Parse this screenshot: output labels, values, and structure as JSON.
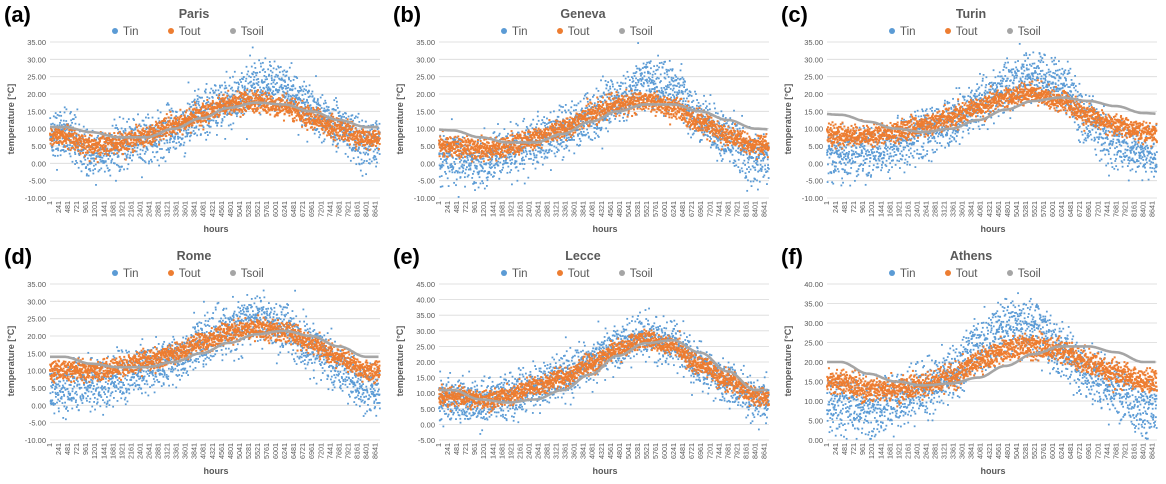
{
  "colors": {
    "Tin": "#5b9bd5",
    "Tout": "#ed7d31",
    "Tsoil": "#a5a5a5",
    "grid": "#d9d9d9",
    "text": "#595959"
  },
  "chart_data": [
    {
      "panel": "(a)",
      "title": "Paris",
      "type": "scatter",
      "xlabel": "hours",
      "ylabel": "temperature [°C]",
      "ylim": [
        -10,
        35
      ],
      "yticks": [
        "-10.00",
        "-5.00",
        "0.00",
        "5.00",
        "10.00",
        "15.00",
        "20.00",
        "25.00",
        "30.00",
        "35.00"
      ],
      "grid": true,
      "legend": "top",
      "series": [
        {
          "name": "Tin",
          "values": [
            9,
            2,
            5,
            7,
            9,
            14,
            18,
            22,
            22,
            16,
            10,
            5
          ]
        },
        {
          "name": "Tout",
          "values": [
            8,
            5,
            6,
            8,
            11,
            14,
            17,
            18,
            16,
            13,
            10,
            7
          ]
        },
        {
          "name": "Tsoil",
          "values": [
            10.5,
            9,
            7.5,
            7.5,
            10,
            13,
            16,
            17.5,
            17,
            15,
            12.5,
            10.5
          ]
        }
      ]
    },
    {
      "panel": "(b)",
      "title": "Geneva",
      "type": "scatter",
      "xlabel": "hours",
      "ylabel": "temperature [°C]",
      "ylim": [
        -10,
        35
      ],
      "yticks": [
        "-10.00",
        "-5.00",
        "0.00",
        "5.00",
        "10.00",
        "15.00",
        "20.00",
        "25.00",
        "30.00",
        "35.00"
      ],
      "grid": true,
      "legend": "top",
      "series": [
        {
          "name": "Tin",
          "values": [
            2,
            0,
            3,
            6,
            9,
            13,
            18,
            23,
            22,
            13,
            7,
            1
          ]
        },
        {
          "name": "Tout",
          "values": [
            5,
            4,
            5,
            7,
            10,
            14,
            17,
            18,
            16,
            12,
            8,
            5
          ]
        },
        {
          "name": "Tsoil",
          "values": [
            9.5,
            7.5,
            6,
            6,
            8.5,
            12,
            15,
            17,
            17,
            15,
            12.5,
            10
          ]
        }
      ]
    },
    {
      "panel": "(c)",
      "title": "Turin",
      "type": "scatter",
      "xlabel": "hours",
      "ylabel": "temperature [°C]",
      "ylim": [
        -10,
        35
      ],
      "yticks": [
        "-10.00",
        "-5.00",
        "0.00",
        "5.00",
        "10.00",
        "15.00",
        "20.00",
        "25.00",
        "30.00",
        "35.00"
      ],
      "grid": true,
      "legend": "top",
      "series": [
        {
          "name": "Tin",
          "values": [
            2,
            3,
            5,
            9,
            12,
            17,
            22,
            25,
            22,
            12,
            6,
            3
          ]
        },
        {
          "name": "Tout",
          "values": [
            8,
            8,
            9,
            11,
            13,
            16,
            19,
            20,
            18,
            14,
            11,
            9
          ]
        },
        {
          "name": "Tsoil",
          "values": [
            14,
            12,
            10,
            9,
            10,
            12.5,
            15.5,
            18,
            19,
            18,
            16.5,
            14.5
          ]
        }
      ]
    },
    {
      "panel": "(d)",
      "title": "Rome",
      "type": "scatter",
      "xlabel": "hours",
      "ylabel": "temperature [°C]",
      "ylim": [
        -10,
        35
      ],
      "yticks": [
        "-10.00",
        "-5.00",
        "0.00",
        "5.00",
        "10.00",
        "15.00",
        "20.00",
        "25.00",
        "30.00",
        "35.00"
      ],
      "grid": true,
      "legend": "top",
      "series": [
        {
          "name": "Tin",
          "values": [
            5,
            6,
            8,
            10,
            13,
            18,
            22,
            25,
            22,
            17,
            11,
            4
          ]
        },
        {
          "name": "Tout",
          "values": [
            10,
            10,
            11,
            13,
            15,
            18,
            21,
            22,
            21,
            18,
            14,
            10
          ]
        },
        {
          "name": "Tsoil",
          "values": [
            14,
            12,
            11,
            11,
            12.5,
            15,
            18,
            20.5,
            21.5,
            20,
            17,
            14
          ]
        }
      ]
    },
    {
      "panel": "(e)",
      "title": "Lecce",
      "type": "scatter",
      "xlabel": "hours",
      "ylabel": "temperature [°C]",
      "ylim": [
        -5,
        45
      ],
      "yticks": [
        "-5.00",
        "0.00",
        "5.00",
        "10.00",
        "15.00",
        "20.00",
        "25.00",
        "30.00",
        "35.00",
        "40.00",
        "45.00"
      ],
      "grid": true,
      "legend": "top",
      "series": [
        {
          "name": "Tin",
          "values": [
            8,
            7,
            9,
            12,
            15,
            20,
            25,
            28,
            26,
            19,
            13,
            8
          ]
        },
        {
          "name": "Tout",
          "values": [
            9,
            8,
            9,
            12,
            15,
            19,
            24,
            27,
            25,
            19,
            14,
            9
          ]
        },
        {
          "name": "Tsoil",
          "values": [
            11,
            8,
            7,
            8,
            11,
            16,
            22,
            26,
            27,
            23,
            17,
            11
          ]
        }
      ]
    },
    {
      "panel": "(f)",
      "title": "Athens",
      "type": "scatter",
      "xlabel": "hours",
      "ylabel": "temperature [°C]",
      "ylim": [
        0,
        40
      ],
      "yticks": [
        "0.00",
        "5.00",
        "10.00",
        "15.00",
        "20.00",
        "25.00",
        "30.00",
        "35.00",
        "40.00"
      ],
      "grid": true,
      "legend": "top",
      "series": [
        {
          "name": "Tin",
          "values": [
            9,
            8,
            10,
            13,
            17,
            24,
            29,
            29,
            22,
            17,
            13,
            8
          ]
        },
        {
          "name": "Tout",
          "values": [
            15,
            13,
            13,
            14,
            16,
            20,
            23,
            24,
            23,
            20,
            17,
            15
          ]
        },
        {
          "name": "Tsoil",
          "values": [
            20,
            17,
            15,
            14,
            14.5,
            16,
            19,
            22,
            24,
            24,
            22.5,
            20
          ]
        }
      ]
    }
  ],
  "xticks": [
    "1",
    "241",
    "481",
    "721",
    "961",
    "1201",
    "1441",
    "1681",
    "1921",
    "2161",
    "2401",
    "2641",
    "2881",
    "3121",
    "3361",
    "3601",
    "3841",
    "4081",
    "4321",
    "4561",
    "4801",
    "5041",
    "5281",
    "5521",
    "5761",
    "6001",
    "6241",
    "6481",
    "6721",
    "6961",
    "7201",
    "7441",
    "7681",
    "7921",
    "8161",
    "8401",
    "8641"
  ],
  "xmax": 8760
}
